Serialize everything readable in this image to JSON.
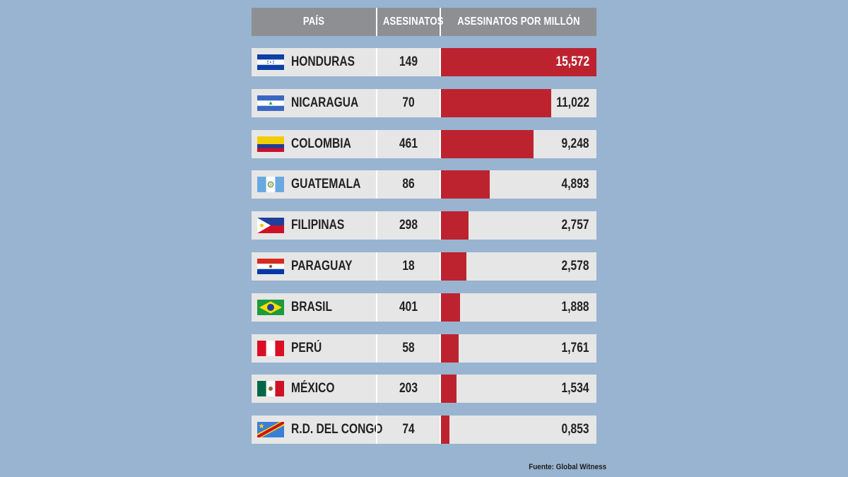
{
  "header": {
    "country": "PAÍS",
    "kills": "ASESINATOS",
    "rate": "ASESINATOS POR MILLÓN"
  },
  "colors": {
    "background": "#98b4d0",
    "header": "#8e8f92",
    "row": "#e6e6e7",
    "bar": "#bd232f"
  },
  "chart_data": {
    "type": "bar",
    "categories": [
      "HONDURAS",
      "NICARAGUA",
      "COLOMBIA",
      "GUATEMALA",
      "FILIPINAS",
      "PARAGUAY",
      "BRASIL",
      "PERÚ",
      "MÉXICO",
      "R.D. DEL CONGO"
    ],
    "kills": [
      "149",
      "70",
      "461",
      "86",
      "298",
      "18",
      "401",
      "58",
      "203",
      "74"
    ],
    "values": [
      15.572,
      11.022,
      9.248,
      4.893,
      2.757,
      2.578,
      1.888,
      1.761,
      1.534,
      0.853
    ],
    "value_labels": [
      "15,572",
      "11,022",
      "9,248",
      "4,893",
      "2,757",
      "2,578",
      "1,888",
      "1,761",
      "1,534",
      "0,853"
    ],
    "flags": [
      "honduras-flag",
      "nicaragua-flag",
      "colombia-flag",
      "guatemala-flag",
      "philippines-flag",
      "paraguay-flag",
      "brazil-flag",
      "peru-flag",
      "mexico-flag",
      "dr-congo-flag"
    ],
    "xlim": [
      0,
      15.572
    ]
  },
  "source": "Fuente: Global Witness"
}
